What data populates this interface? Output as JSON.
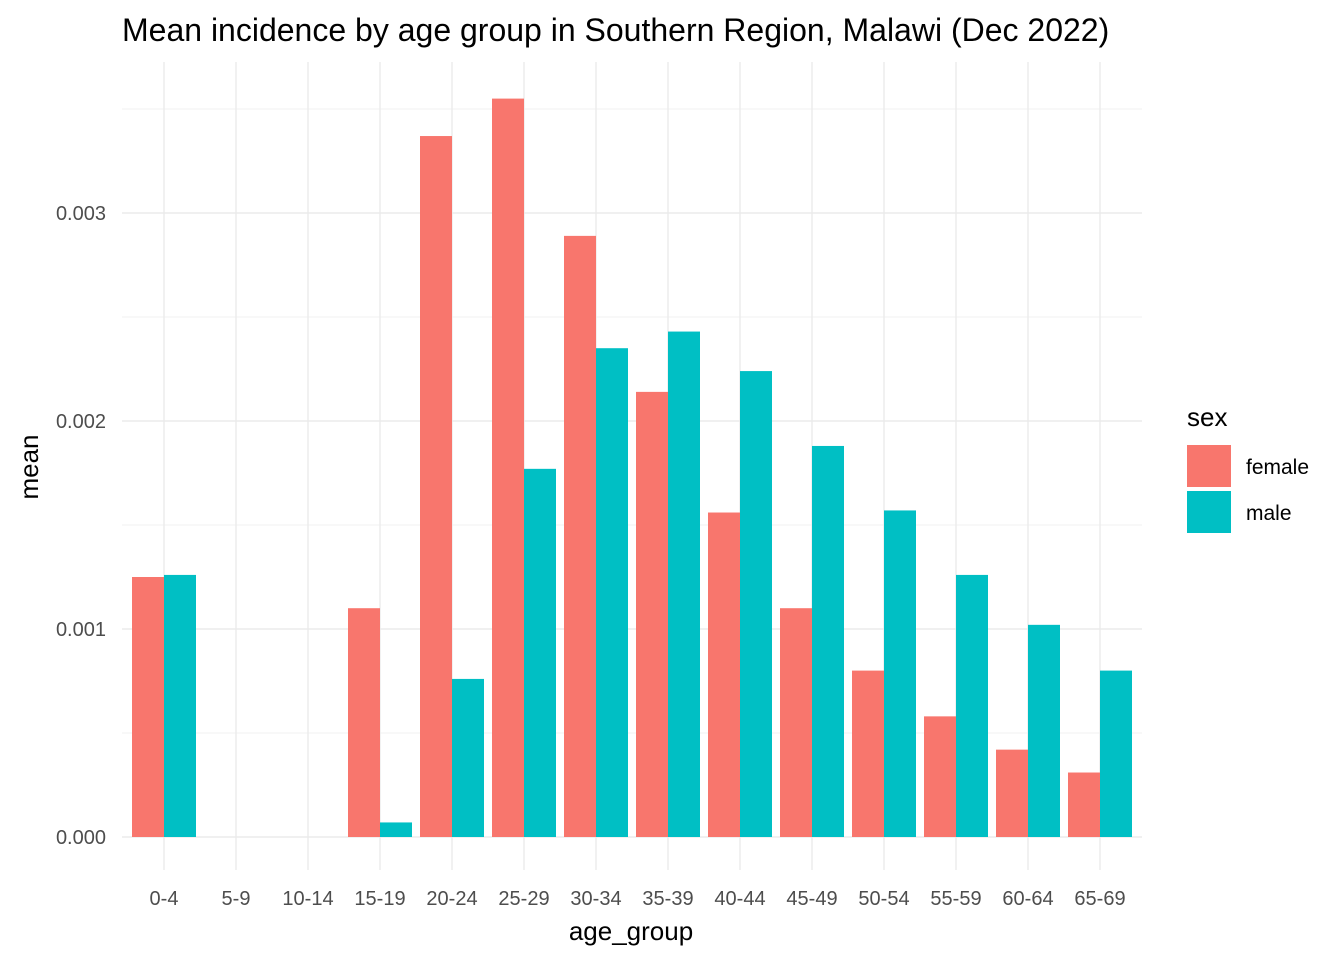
{
  "chart_data": {
    "type": "bar",
    "title": "Mean incidence by age group in Southern Region, Malawi (Dec 2022)",
    "xlabel": "age_group",
    "ylabel": "mean",
    "categories": [
      "0-4",
      "5-9",
      "10-14",
      "15-19",
      "20-24",
      "25-29",
      "30-34",
      "35-39",
      "40-44",
      "45-49",
      "50-54",
      "55-59",
      "60-64",
      "65-69"
    ],
    "series": [
      {
        "name": "female",
        "color": "#F8766D",
        "values": [
          0.00125,
          0,
          0,
          0.0011,
          0.00337,
          0.00355,
          0.00289,
          0.00214,
          0.00156,
          0.0011,
          0.0008,
          0.00058,
          0.00042,
          0.00031
        ]
      },
      {
        "name": "male",
        "color": "#00BFC4",
        "values": [
          0.00126,
          0,
          0,
          7e-05,
          0.00076,
          0.00177,
          0.00235,
          0.00243,
          0.00224,
          0.00188,
          0.00157,
          0.00126,
          0.00102,
          0.0008
        ]
      }
    ],
    "ylim": [
      0,
      0.0037
    ],
    "yticks": [
      0,
      0.001,
      0.002,
      0.003
    ],
    "ytick_labels": [
      "0.000",
      "0.001",
      "0.002",
      "0.003"
    ],
    "grid": true,
    "legend": {
      "title": "sex",
      "position": "right"
    }
  }
}
